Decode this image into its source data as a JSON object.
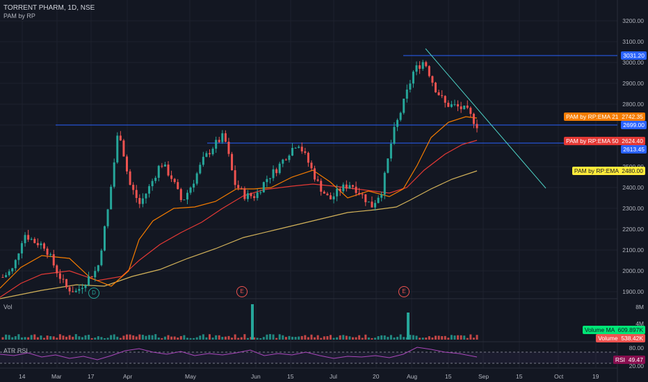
{
  "header": {
    "symbol": "TORRENT PHARM, 1D, NSE",
    "indicator": "PAM by RP"
  },
  "price_axis": [
    "3200.00",
    "3100.00",
    "3000.00",
    "2900.00",
    "2800.00",
    "2700.00",
    "2600.00",
    "2500.00",
    "2400.00",
    "2300.00",
    "2200.00",
    "2100.00",
    "2000.00",
    "1900.00"
  ],
  "volume_axis": [
    "8M",
    "4M"
  ],
  "rsi_axis": [
    "80.00",
    "20.00"
  ],
  "time_axis": [
    "14",
    "Mar",
    "17",
    "Apr",
    "May",
    "Jun",
    "15",
    "Jul",
    "20",
    "Aug",
    "15",
    "Sep",
    "15",
    "Oct",
    "19"
  ],
  "tags": {
    "level_3031": "3031.20",
    "ema21": "PAM by RP:EMA 21",
    "ema21_val": "2742.35",
    "level_2699": "2699.00",
    "ema50": "PAM by RP:EMA 50",
    "ema50_val": "2624.40",
    "level_2613": "2613.45",
    "ema": "PAM by RP:EMA",
    "ema_val": "2480.00",
    "volume_ma": "Volume MA",
    "volume_ma_val": "609.897K",
    "volume": "Volume",
    "volume_val": "538.42K",
    "rsi": "RSI",
    "rsi_val": "49.47"
  },
  "panes": {
    "volume": "Vol",
    "rsi": "ATR RSI"
  },
  "events": {
    "dividend": "D",
    "earnings": "E"
  },
  "colors": {
    "background": "#131722",
    "up": "#26a69a",
    "down": "#ef5350",
    "ema21": "#f57c00",
    "ema50": "#e53935",
    "ema_long": "#d4b35a",
    "hline": "#2962ff",
    "trend": "#4dd0c4",
    "rsi": "#9c27b0"
  },
  "chart_data": {
    "type": "candlestick",
    "title": "TORRENT PHARM, 1D, NSE",
    "y_range": [
      1880,
      3260
    ],
    "horizontal_levels": [
      3031.2,
      2699.0,
      2613.45
    ],
    "ema_last": {
      "EMA 21": 2742.35,
      "EMA 50": 2624.4,
      "EMA": 2480.0
    },
    "close_path": [
      [
        "Feb 14",
        1970
      ],
      [
        "Feb 20",
        2010
      ],
      [
        "Feb 25",
        2180
      ],
      [
        "Mar 1",
        2140
      ],
      [
        "Mar 8",
        2120
      ],
      [
        "Mar 12",
        2010
      ],
      [
        "Mar 17",
        1920
      ],
      [
        "Mar 22",
        1900
      ],
      [
        "Mar 26",
        1960
      ],
      [
        "Apr 1",
        2010
      ],
      [
        "Apr 5",
        2300
      ],
      [
        "Apr 7",
        2690
      ],
      [
        "Apr 9",
        2420
      ],
      [
        "Apr 14",
        2320
      ],
      [
        "Apr 19",
        2410
      ],
      [
        "Apr 23",
        2520
      ],
      [
        "Apr 28",
        2450
      ],
      [
        "May 3",
        2330
      ],
      [
        "May 7",
        2420
      ],
      [
        "May 12",
        2530
      ],
      [
        "May 18",
        2600
      ],
      [
        "May 21",
        2650
      ],
      [
        "May 24",
        2420
      ],
      [
        "May 28",
        2360
      ],
      [
        "Jun 3",
        2360
      ],
      [
        "Jun 7",
        2440
      ],
      [
        "Jun 11",
        2490
      ],
      [
        "Jun 15",
        2560
      ],
      [
        "Jun 20",
        2620
      ],
      [
        "Jun 24",
        2520
      ],
      [
        "Jun 29",
        2410
      ],
      [
        "Jul 5",
        2340
      ],
      [
        "Jul 12",
        2390
      ],
      [
        "Jul 17",
        2420
      ],
      [
        "Jul 21",
        2370
      ],
      [
        "Jul 26",
        2310
      ],
      [
        "Jul 29",
        2390
      ],
      [
        "Aug 1",
        2650
      ],
      [
        "Aug 3",
        2800
      ],
      [
        "Aug 5",
        2960
      ],
      [
        "Aug 8",
        3010
      ],
      [
        "Aug 10",
        2880
      ],
      [
        "Aug 15",
        2800
      ],
      [
        "Aug 20",
        2790
      ],
      [
        "Aug 24",
        2770
      ],
      [
        "Aug 27",
        2700
      ]
    ],
    "volume_last": 538420,
    "volume_ma_last": 609897,
    "rsi_last": 49.47
  }
}
